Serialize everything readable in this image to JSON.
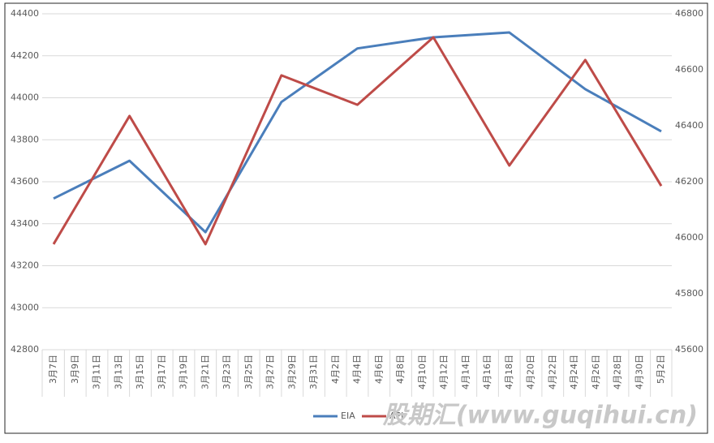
{
  "chart_data": {
    "type": "line",
    "categories": [
      "3月7日",
      null,
      "3月9日",
      null,
      "3月11日",
      null,
      "3月13日",
      null,
      "3月15日",
      null,
      "3月17日",
      null,
      "3月19日",
      null,
      "3月21日",
      null,
      "3月23日",
      null,
      "3月25日",
      null,
      "3月27日",
      null,
      "3月29日",
      null,
      "3月31日",
      null,
      "4月2日",
      null,
      "4月4日",
      null,
      "4月6日",
      null,
      "4月8日",
      null,
      "4月10日",
      null,
      "4月12日",
      null,
      "4月14日",
      null,
      "4月16日",
      null,
      "4月18日",
      null,
      "4月20日",
      null,
      "4月22日",
      null,
      "4月24日",
      null,
      "4月26日",
      null,
      "4月28日",
      null,
      "4月30日",
      null,
      "5月2日"
    ],
    "series": [
      {
        "name": "EIA",
        "color": "#4a7ebb",
        "values": [
          43520,
          null,
          null,
          null,
          null,
          null,
          null,
          43700,
          null,
          null,
          null,
          null,
          null,
          null,
          43360,
          null,
          null,
          null,
          null,
          null,
          null,
          43980,
          null,
          null,
          null,
          null,
          null,
          null,
          44235,
          null,
          null,
          null,
          null,
          null,
          null,
          44288,
          null,
          null,
          null,
          null,
          null,
          null,
          44311,
          null,
          null,
          null,
          null,
          null,
          null,
          44041,
          null,
          null,
          null,
          null,
          null,
          null,
          43840
        ]
      },
      {
        "name": "API",
        "color": "#be4b48",
        "axis": "y2",
        "values": [
          45977,
          null,
          null,
          null,
          null,
          null,
          null,
          46435,
          null,
          null,
          null,
          null,
          null,
          null,
          45977,
          null,
          null,
          null,
          null,
          null,
          null,
          46580,
          null,
          null,
          null,
          null,
          null,
          null,
          46475,
          null,
          null,
          null,
          null,
          null,
          null,
          46716,
          null,
          null,
          null,
          null,
          null,
          null,
          46258,
          null,
          null,
          null,
          null,
          null,
          null,
          46635,
          null,
          null,
          null,
          null,
          null,
          null,
          46185
        ]
      }
    ],
    "ylim": [
      42800,
      44400
    ],
    "yticks": [
      42800,
      43000,
      43200,
      43400,
      43600,
      43800,
      44000,
      44200,
      44400
    ],
    "y2lim": [
      45600,
      46800
    ],
    "y2ticks": [
      45600,
      45800,
      46000,
      46200,
      46400,
      46600,
      46800
    ],
    "grid": true,
    "legend": "bottom",
    "watermark": "股期汇(www.guqihui.cn)"
  }
}
